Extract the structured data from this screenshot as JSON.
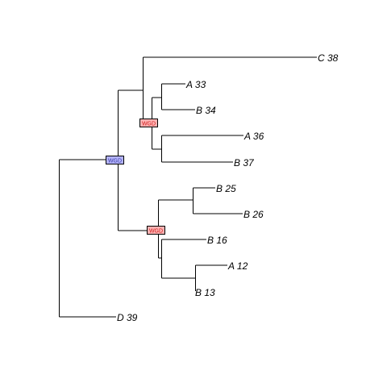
{
  "tree": {
    "tips": [
      {
        "id": "C38",
        "label": "C 38"
      },
      {
        "id": "A33",
        "label": "A 33"
      },
      {
        "id": "B34",
        "label": "B 34"
      },
      {
        "id": "A36",
        "label": "A 36"
      },
      {
        "id": "B37",
        "label": "B 37"
      },
      {
        "id": "B25",
        "label": "B 25"
      },
      {
        "id": "B26",
        "label": "B 26"
      },
      {
        "id": "B16",
        "label": "B 16"
      },
      {
        "id": "A12",
        "label": "A 12"
      },
      {
        "id": "B13",
        "label": "B 13"
      },
      {
        "id": "D39",
        "label": "D 39"
      }
    ],
    "topology": "((C 38,((A 33,B 34),(A 36,B 37))),((B 25,B 26),(B 16,(A 12,B 13)))),D 39)",
    "wgd_events": [
      {
        "id": "wgd-1",
        "label": "WGD",
        "fill": "#b3b3ff",
        "text_color": "#4040a0"
      },
      {
        "id": "wgd-2",
        "label": "WGD",
        "fill": "#ffb3b3",
        "text_color": "#cc2020"
      },
      {
        "id": "wgd-3",
        "label": "WGD",
        "fill": "#ffb3b3",
        "text_color": "#cc2020"
      }
    ]
  }
}
